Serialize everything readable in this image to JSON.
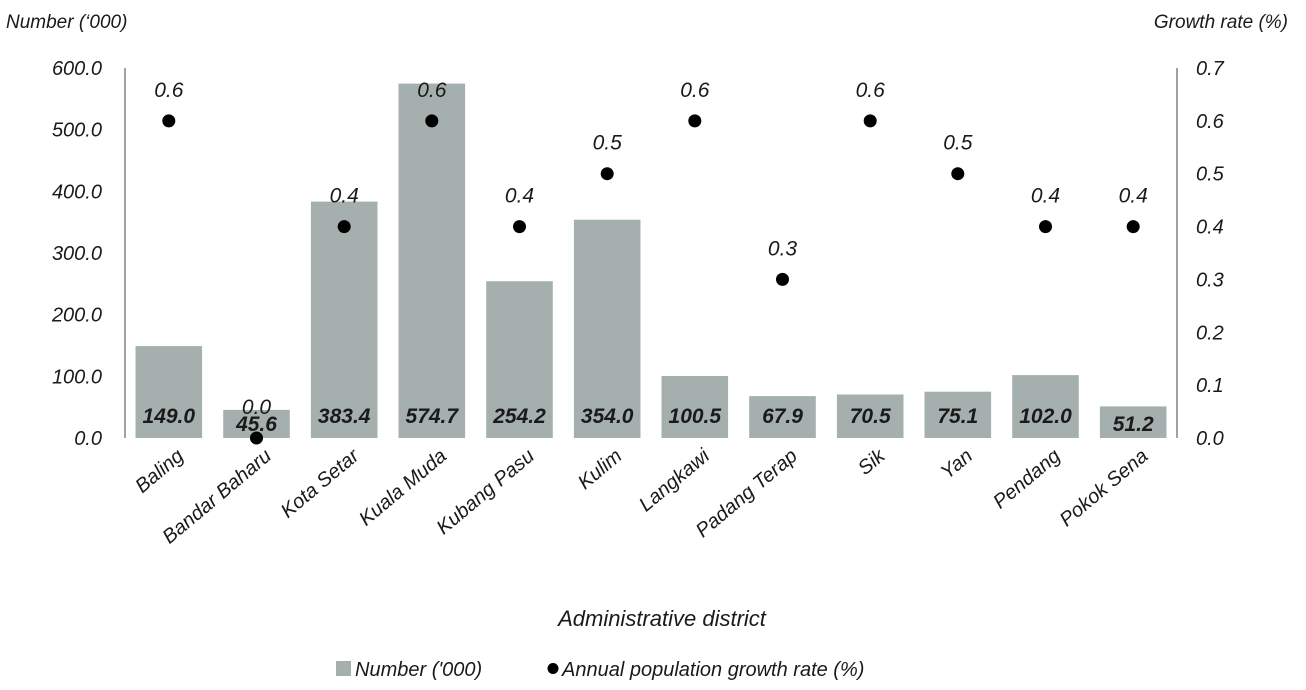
{
  "chart_data": {
    "type": "bar",
    "categories": [
      "Baling",
      "Bandar Baharu",
      "Kota Setar",
      "Kuala Muda",
      "Kubang Pasu",
      "Kulim",
      "Langkawi",
      "Padang Terap",
      "Sik",
      "Yan",
      "Pendang",
      "Pokok Sena"
    ],
    "series": [
      {
        "name": "Number ('000)",
        "type": "bar",
        "axis": "left",
        "color": "#a5b0ae",
        "values": [
          149.0,
          45.6,
          383.4,
          574.7,
          254.2,
          354.0,
          100.5,
          67.9,
          70.5,
          75.1,
          102.0,
          51.2
        ],
        "labels": [
          "149.0",
          "45.6",
          "383.4",
          "574.7",
          "254.2",
          "354.0",
          "100.5",
          "67.9",
          "70.5",
          "75.1",
          "102.0",
          "51.2"
        ]
      },
      {
        "name": "Annual population growth rate (%)",
        "type": "scatter",
        "axis": "right",
        "color": "#000000",
        "values": [
          0.6,
          0.0,
          0.4,
          0.6,
          0.4,
          0.5,
          0.6,
          0.3,
          0.6,
          0.5,
          0.4,
          0.4
        ],
        "labels": [
          "0.6",
          "0.0",
          "0.4",
          "0.6",
          "0.4",
          "0.5",
          "0.6",
          "0.3",
          "0.6",
          "0.5",
          "0.4",
          "0.4"
        ]
      }
    ],
    "xlabel": "Administrative district",
    "ylabel_left": "Number (‘000)",
    "ylabel_right": "Growth rate (%)",
    "ylim_left": [
      0,
      600
    ],
    "ylim_right": [
      0,
      0.7
    ],
    "yticks_left": [
      "0.0",
      "100.0",
      "200.0",
      "300.0",
      "400.0",
      "500.0",
      "600.0"
    ],
    "yticks_right": [
      "0.0",
      "0.1",
      "0.2",
      "0.3",
      "0.4",
      "0.5",
      "0.6",
      "0.7"
    ],
    "grid": false,
    "legend": {
      "position": "bottom",
      "entries": [
        "Number ('000)",
        "Annual population growth rate (%)"
      ]
    }
  }
}
